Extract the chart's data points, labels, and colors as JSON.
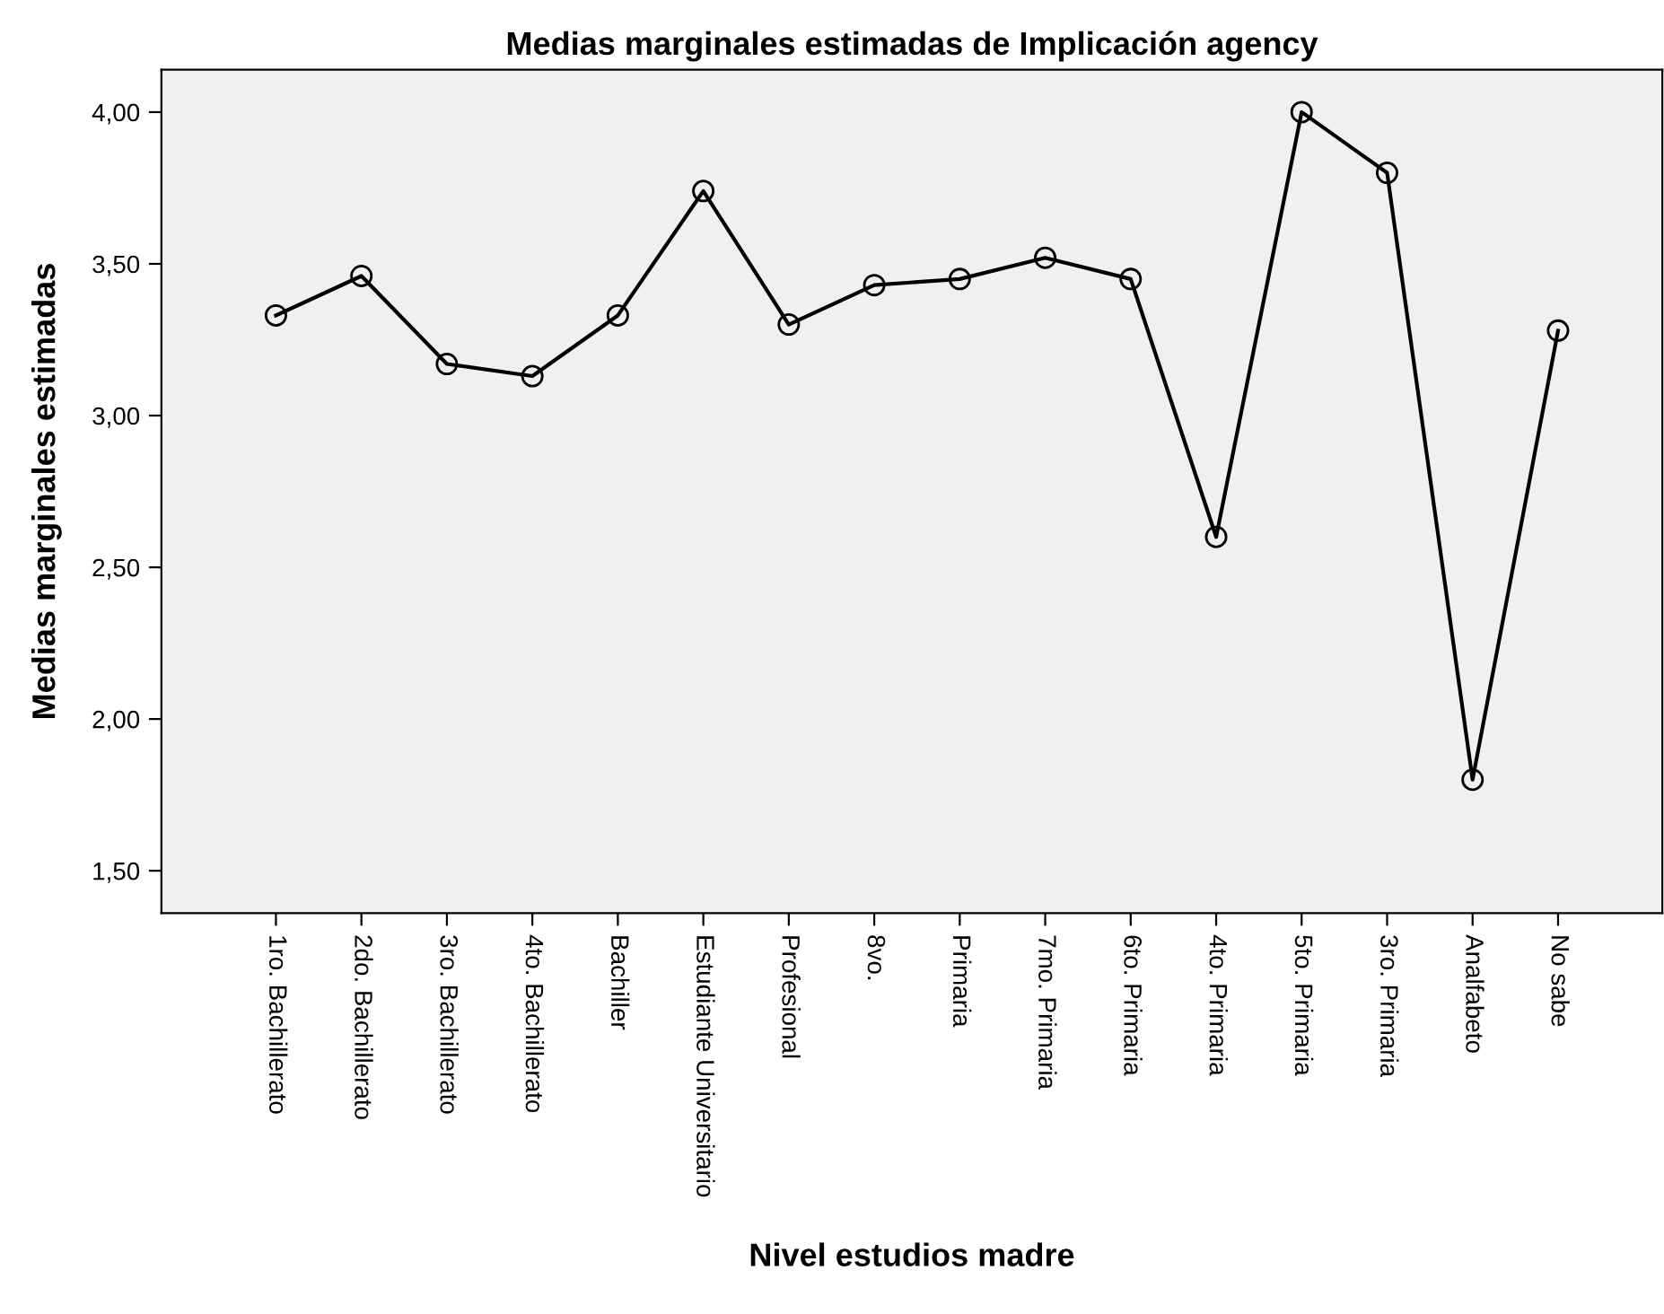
{
  "chart_data": {
    "type": "line",
    "title": "Medias marginales estimadas de Implicación agency",
    "xlabel": "Nivel estudios madre",
    "ylabel": "Medias marginales estimadas",
    "categories": [
      "1ro. Bachillerato",
      "2do. Bachillerato",
      "3ro. Bachillerato",
      "4to. Bachillerato",
      "Bachiller",
      "Estudiante Universitario",
      "Profesional",
      "8vo.",
      "Primaria",
      "7mo. Primaria",
      "6to. Primaria",
      "4to. Primaria",
      "5to. Primaria",
      "3ro. Primaria",
      "Analfabeto",
      "No sabe"
    ],
    "series": [
      {
        "color": "#000000",
        "values": [
          3.33,
          3.46,
          3.17,
          3.13,
          3.33,
          3.74,
          3.3,
          3.43,
          3.45,
          3.52,
          3.45,
          2.6,
          4.0,
          3.8,
          1.8,
          3.28
        ]
      }
    ],
    "ylim": [
      1.36,
      4.14
    ],
    "yticks": [
      {
        "value": 1.5,
        "label": "1,50"
      },
      {
        "value": 2.0,
        "label": "2,00"
      },
      {
        "value": 2.5,
        "label": "2,50"
      },
      {
        "value": 3.0,
        "label": "3,00"
      },
      {
        "value": 3.5,
        "label": "3,50"
      },
      {
        "value": 4.0,
        "label": "4,00"
      }
    ],
    "marker": "circle",
    "line_style": "solid",
    "grid": false,
    "legend": false
  }
}
